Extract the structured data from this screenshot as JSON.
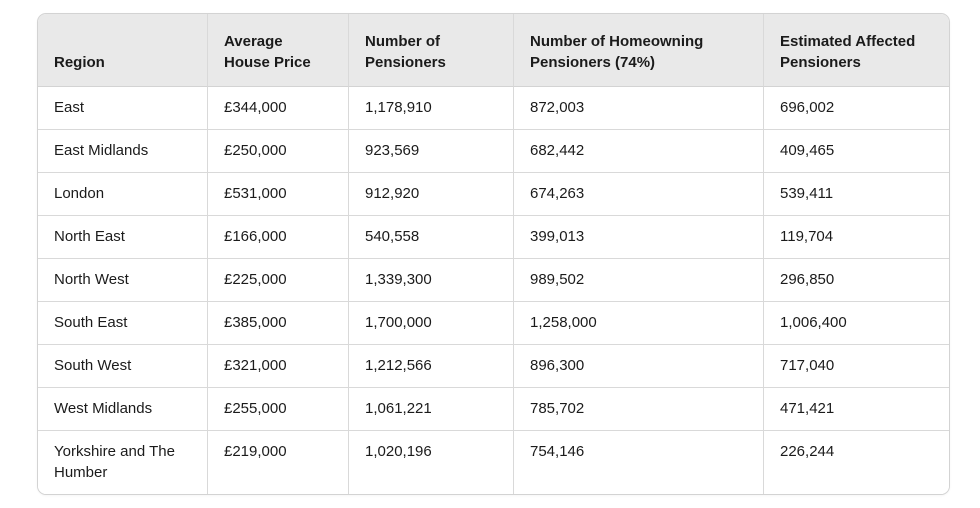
{
  "chart_data": {
    "type": "table",
    "columns": [
      "Region",
      "Average House Price",
      "Number of Pensioners",
      "Number of Homeowning Pensioners (74%)",
      "Estimated Affected Pensioners"
    ],
    "rows": [
      [
        "East",
        "£344,000",
        "1,178,910",
        "872,003",
        "696,002"
      ],
      [
        "East Midlands",
        "£250,000",
        "923,569",
        "682,442",
        "409,465"
      ],
      [
        "London",
        "£531,000",
        "912,920",
        "674,263",
        "539,411"
      ],
      [
        "North East",
        "£166,000",
        "540,558",
        "399,013",
        "119,704"
      ],
      [
        "North West",
        "£225,000",
        "1,339,300",
        "989,502",
        "296,850"
      ],
      [
        "South East",
        "£385,000",
        "1,700,000",
        "1,258,000",
        "1,006,400"
      ],
      [
        "South West",
        "£321,000",
        "1,212,566",
        "896,300",
        "717,040"
      ],
      [
        "West Midlands",
        "£255,000",
        "1,061,221",
        "785,702",
        "471,421"
      ],
      [
        "Yorkshire and The Humber",
        "£219,000",
        "1,020,196",
        "754,146",
        "226,244"
      ]
    ]
  },
  "colors": {
    "header_bg": "#e9e9e9",
    "border": "#d3d3d3",
    "row_border": "#d9d9d9",
    "text": "#1b1b1b",
    "background": "#ffffff"
  }
}
